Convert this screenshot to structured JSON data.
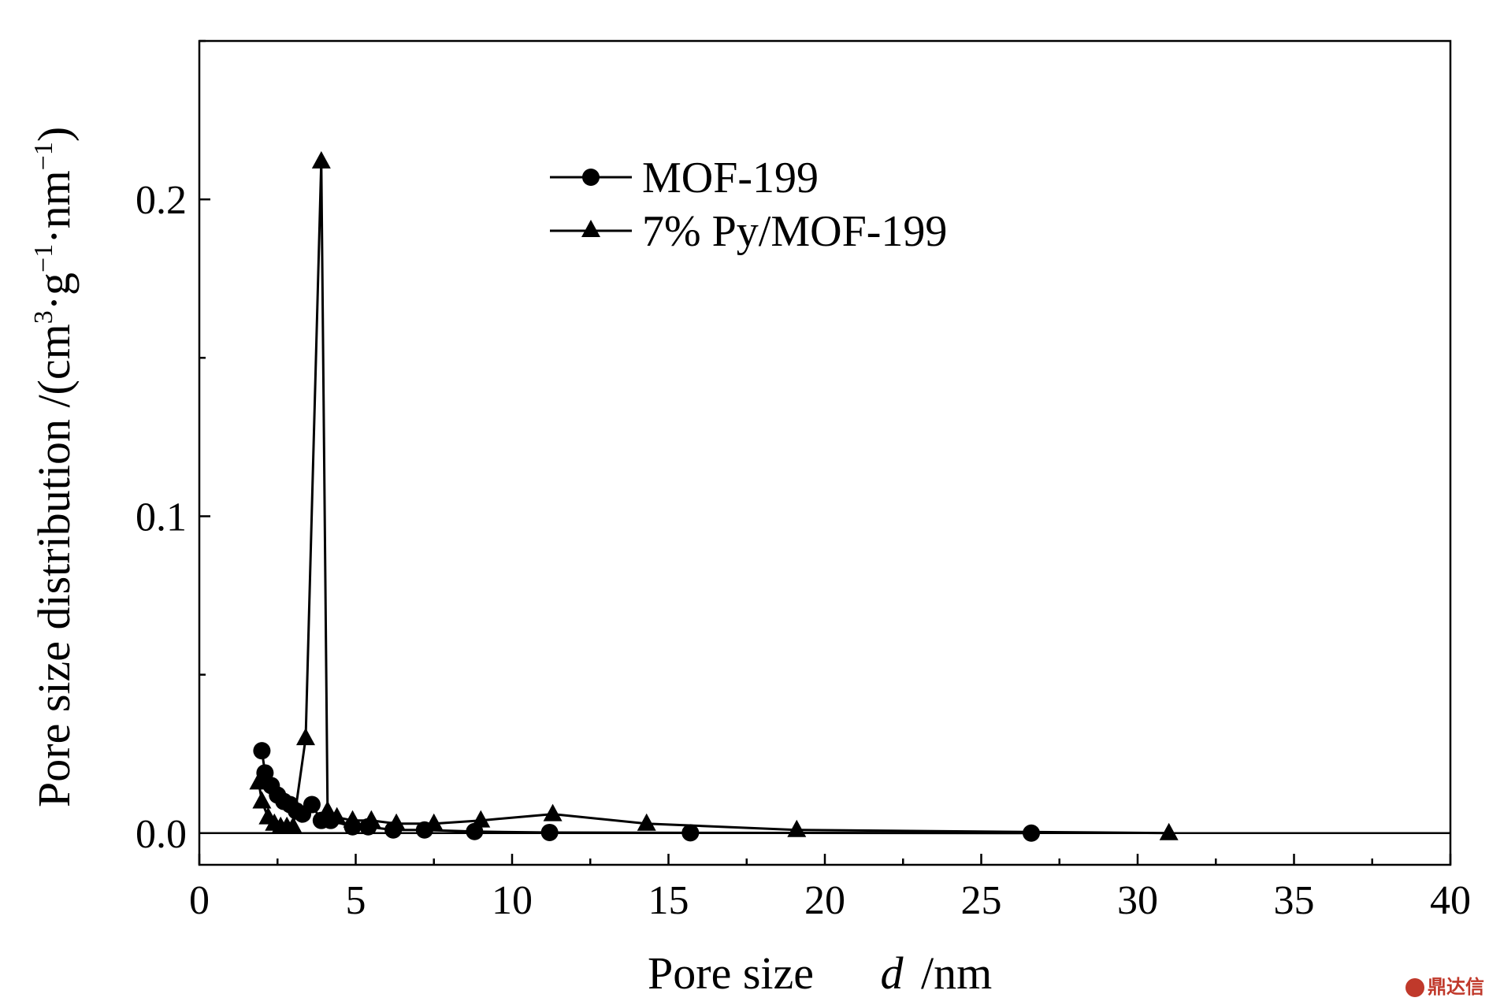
{
  "chart_data": {
    "type": "line",
    "title": "",
    "xlabel_main": "Pore size",
    "xlabel_var": "d",
    "xlabel_unit": "/nm",
    "ylabel_main": "Pore size distribution /(cm",
    "ylabel_sup1": "3",
    "ylabel_mid1": "·g",
    "ylabel_sup2": "−1",
    "ylabel_mid2": "·nm",
    "ylabel_sup3": "−1",
    "ylabel_end": ")",
    "xlim": [
      0,
      40
    ],
    "ylim": [
      -0.01,
      0.25
    ],
    "x_ticks": [
      0,
      5,
      10,
      15,
      20,
      25,
      30,
      35,
      40
    ],
    "x_tick_labels": [
      "0",
      "5",
      "10",
      "15",
      "20",
      "25",
      "30",
      "35",
      "40"
    ],
    "x_minor_step": 2.5,
    "y_ticks": [
      0.0,
      0.1,
      0.2
    ],
    "y_tick_labels": [
      "0.0",
      "0.1",
      "0.2"
    ],
    "y_minor_step": 0.05,
    "grid": false,
    "legend_position": "top-center",
    "series": [
      {
        "name": "MOF-199",
        "marker": "circle",
        "color": "#000000",
        "x": [
          2.0,
          2.1,
          2.3,
          2.5,
          2.7,
          2.9,
          3.1,
          3.3,
          3.6,
          3.9,
          4.2,
          4.9,
          5.4,
          6.2,
          7.2,
          8.8,
          11.2,
          15.7,
          26.6
        ],
        "y": [
          0.026,
          0.019,
          0.015,
          0.012,
          0.01,
          0.009,
          0.007,
          0.006,
          0.009,
          0.004,
          0.004,
          0.002,
          0.002,
          0.001,
          0.001,
          0.0005,
          0.0002,
          0.0001,
          0.0
        ]
      },
      {
        "name": "7% Py/MOF-199",
        "marker": "triangle",
        "color": "#000000",
        "x": [
          1.9,
          2.0,
          2.2,
          2.4,
          2.6,
          2.8,
          3.0,
          3.4,
          3.9,
          4.1,
          4.4,
          4.9,
          5.5,
          6.3,
          7.5,
          9.0,
          11.3,
          14.3,
          19.1,
          31.0
        ],
        "y": [
          0.016,
          0.01,
          0.005,
          0.003,
          0.002,
          0.002,
          0.002,
          0.03,
          0.212,
          0.007,
          0.005,
          0.004,
          0.004,
          0.003,
          0.003,
          0.004,
          0.006,
          0.003,
          0.001,
          0.0
        ]
      }
    ]
  },
  "watermark": {
    "text": "鼎达信"
  }
}
